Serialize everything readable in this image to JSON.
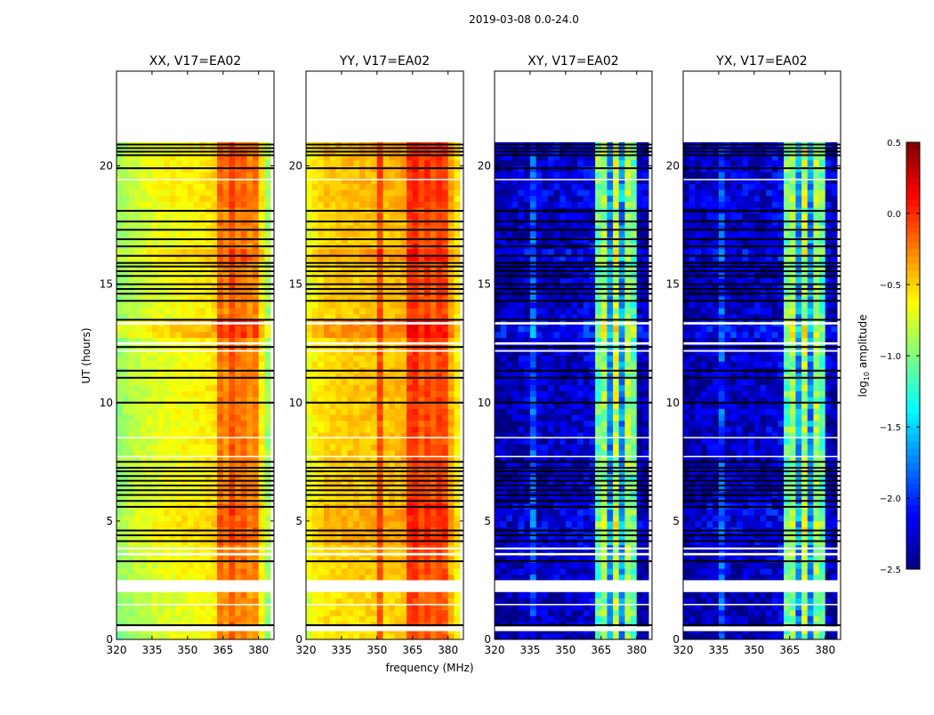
{
  "chart_data": {
    "type": "heatmap",
    "title": "2019-03-08 0.0-24.0",
    "xlabel": "frequency (MHz)",
    "ylabel": "UT (hours)",
    "xlim": [
      320,
      386.5
    ],
    "ylim": [
      0,
      24
    ],
    "xticks": [
      "320",
      "335",
      "350",
      "365",
      "380"
    ],
    "xtick_values": [
      320,
      335,
      350,
      365,
      380
    ],
    "yticks": [
      "0",
      "5",
      "10",
      "15",
      "20"
    ],
    "ytick_values": [
      0,
      5,
      10,
      15,
      20
    ],
    "colorbar": {
      "label_main": "log",
      "label_sub": "10",
      "label_rest": " amplitude",
      "range": [
        -2.5,
        0.5
      ],
      "ticks": [
        "0.5",
        "0.0",
        "−0.5",
        "−1.0",
        "−1.5",
        "−2.0",
        "−2.5"
      ],
      "tick_values": [
        0.5,
        0.0,
        -0.5,
        -1.0,
        -1.5,
        -2.0,
        -2.5
      ],
      "colormap": "jet"
    },
    "data_time_range": [
      0,
      21
    ],
    "freq_bins": [
      320,
      322.5,
      325,
      327.5,
      330,
      332.5,
      335,
      337.5,
      340,
      342.5,
      345,
      347.5,
      350,
      352.5,
      355,
      357.5,
      360,
      362.5,
      365,
      367.5,
      370,
      372.5,
      375,
      377.5,
      380,
      382.5
    ],
    "time_offsets": [
      {
        "t": [
          0,
          2.0
        ],
        "offset": -0.05
      },
      {
        "t": [
          3.9,
          5.6
        ],
        "offset": 0.08
      },
      {
        "t": [
          12.7,
          13.3
        ],
        "offset": 0.18
      },
      {
        "t": [
          15.8,
          16.3
        ],
        "offset": 0.12
      },
      {
        "t": [
          18.2,
          21
        ],
        "offset": 0.05
      }
    ],
    "flagged_missing_white": [
      [
        0.35,
        0.55
      ],
      [
        2.0,
        2.5
      ],
      [
        3.55,
        3.65
      ],
      [
        3.8,
        3.88
      ],
      [
        1.45,
        1.5
      ],
      [
        7.7,
        7.75
      ],
      [
        8.5,
        8.55
      ],
      [
        12.15,
        12.22
      ],
      [
        12.45,
        12.55
      ],
      [
        13.3,
        13.4
      ],
      [
        19.4,
        19.45
      ]
    ],
    "flagged_black_lines": [
      20.9,
      20.75,
      20.6,
      20.45,
      19.9,
      18.1,
      17.65,
      17.3,
      16.9,
      16.6,
      16.2,
      15.9,
      15.75,
      15.55,
      15.35,
      15.0,
      14.8,
      14.6,
      14.3,
      13.5,
      12.35,
      11.35,
      11.05,
      10.0,
      7.5,
      7.25,
      7.1,
      6.9,
      6.7,
      6.5,
      6.3,
      6.1,
      5.85,
      5.6,
      4.6,
      4.4,
      4.15,
      3.3,
      0.6
    ],
    "panels": [
      {
        "title": "XX, V17=EA02",
        "profile": [
          -0.95,
          -0.9,
          -0.85,
          -0.8,
          -0.78,
          -0.75,
          -0.72,
          -0.7,
          -0.68,
          -0.66,
          -0.65,
          -0.64,
          -0.63,
          -0.62,
          -0.6,
          -0.58,
          -0.55,
          -0.2,
          -0.3,
          -0.1,
          -0.25,
          -0.2,
          -0.3,
          -0.25,
          -0.6,
          -0.9
        ]
      },
      {
        "title": "YY, V17=EA02",
        "profile": [
          -0.7,
          -0.6,
          -0.55,
          -0.5,
          -0.5,
          -0.48,
          -0.48,
          -0.47,
          -0.47,
          -0.46,
          -0.46,
          -0.45,
          -0.1,
          -0.45,
          -0.44,
          -0.43,
          -0.4,
          -0.05,
          0.0,
          -0.15,
          -0.05,
          -0.15,
          -0.05,
          -0.1,
          -0.4,
          -0.6
        ]
      },
      {
        "title": "XY, V17=EA02",
        "profile": [
          -2.4,
          -2.35,
          -2.35,
          -2.35,
          -2.3,
          -2.3,
          -1.9,
          -2.3,
          -2.3,
          -2.3,
          -2.3,
          -2.3,
          -2.3,
          -2.3,
          -2.25,
          -2.25,
          -2.2,
          -1.1,
          -0.9,
          -1.7,
          -0.8,
          -1.7,
          -0.9,
          -1.1,
          -2.3,
          -2.35
        ]
      },
      {
        "title": "YX, V17=EA02",
        "profile": [
          -2.4,
          -2.35,
          -2.35,
          -2.35,
          -2.3,
          -2.3,
          -1.9,
          -2.3,
          -2.3,
          -2.3,
          -2.3,
          -2.3,
          -2.3,
          -2.3,
          -2.25,
          -2.25,
          -2.2,
          -1.1,
          -0.9,
          -1.7,
          -0.8,
          -1.7,
          -0.9,
          -1.1,
          -2.3,
          -2.35
        ]
      }
    ]
  }
}
